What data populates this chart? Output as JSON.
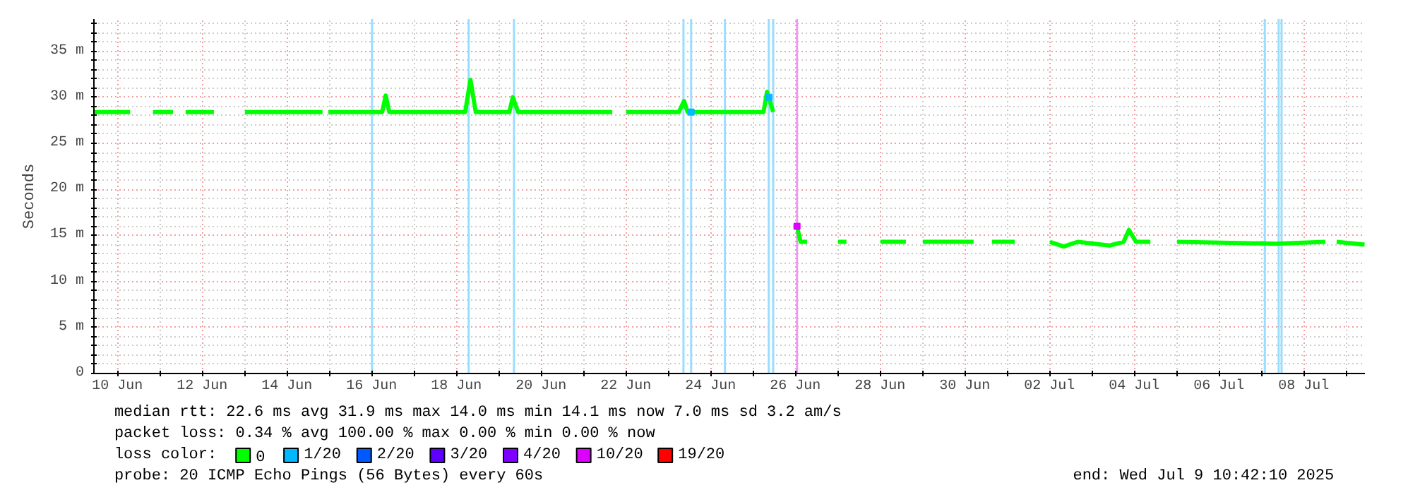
{
  "chart_data": {
    "type": "line",
    "ylabel": "Seconds",
    "xlim": [
      "2025-06-09T10:42",
      "2025-07-09T10:42"
    ],
    "xticks": [
      {
        "value": "2025-06-10",
        "label": "10 Jun"
      },
      {
        "value": "2025-06-11",
        "label": null
      },
      {
        "value": "2025-06-12",
        "label": "12 Jun"
      },
      {
        "value": "2025-06-13",
        "label": null
      },
      {
        "value": "2025-06-14",
        "label": "14 Jun"
      },
      {
        "value": "2025-06-15",
        "label": null
      },
      {
        "value": "2025-06-16",
        "label": "16 Jun"
      },
      {
        "value": "2025-06-17",
        "label": null
      },
      {
        "value": "2025-06-18",
        "label": "18 Jun"
      },
      {
        "value": "2025-06-19",
        "label": null
      },
      {
        "value": "2025-06-20",
        "label": "20 Jun"
      },
      {
        "value": "2025-06-21",
        "label": null
      },
      {
        "value": "2025-06-22",
        "label": "22 Jun"
      },
      {
        "value": "2025-06-23",
        "label": null
      },
      {
        "value": "2025-06-24",
        "label": "24 Jun"
      },
      {
        "value": "2025-06-25",
        "label": null
      },
      {
        "value": "2025-06-26",
        "label": "26 Jun"
      },
      {
        "value": "2025-06-27",
        "label": null
      },
      {
        "value": "2025-06-28",
        "label": "28 Jun"
      },
      {
        "value": "2025-06-29",
        "label": null
      },
      {
        "value": "2025-06-30",
        "label": "30 Jun"
      },
      {
        "value": "2025-07-01",
        "label": null
      },
      {
        "value": "2025-07-02",
        "label": "02 Jul"
      },
      {
        "value": "2025-07-03",
        "label": null
      },
      {
        "value": "2025-07-04",
        "label": "04 Jul"
      },
      {
        "value": "2025-07-05",
        "label": null
      },
      {
        "value": "2025-07-06",
        "label": "06 Jul"
      },
      {
        "value": "2025-07-07",
        "label": null
      },
      {
        "value": "2025-07-08",
        "label": "08 Jul"
      },
      {
        "value": "2025-07-09",
        "label": null
      }
    ],
    "ylim": [
      0,
      38.5
    ],
    "yticks": [
      {
        "value": 0,
        "label": "0"
      },
      {
        "value": 1,
        "label": null
      },
      {
        "value": 2,
        "label": null
      },
      {
        "value": 3,
        "label": null
      },
      {
        "value": 4,
        "label": null
      },
      {
        "value": 5,
        "label": "5 m"
      },
      {
        "value": 6,
        "label": null
      },
      {
        "value": 7,
        "label": null
      },
      {
        "value": 8,
        "label": null
      },
      {
        "value": 9,
        "label": null
      },
      {
        "value": 10,
        "label": "10 m"
      },
      {
        "value": 11,
        "label": null
      },
      {
        "value": 12,
        "label": null
      },
      {
        "value": 13,
        "label": null
      },
      {
        "value": 14,
        "label": null
      },
      {
        "value": 15,
        "label": "15 m"
      },
      {
        "value": 16,
        "label": null
      },
      {
        "value": 17,
        "label": null
      },
      {
        "value": 18,
        "label": null
      },
      {
        "value": 19,
        "label": null
      },
      {
        "value": 20,
        "label": "20 m"
      },
      {
        "value": 21,
        "label": null
      },
      {
        "value": 22,
        "label": null
      },
      {
        "value": 23,
        "label": null
      },
      {
        "value": 24,
        "label": null
      },
      {
        "value": 25,
        "label": "25 m"
      },
      {
        "value": 26,
        "label": null
      },
      {
        "value": 27,
        "label": null
      },
      {
        "value": 28,
        "label": null
      },
      {
        "value": 29,
        "label": null
      },
      {
        "value": 30,
        "label": "30 m"
      },
      {
        "value": 31,
        "label": null
      },
      {
        "value": 32,
        "label": null
      },
      {
        "value": 33,
        "label": null
      },
      {
        "value": 34,
        "label": null
      },
      {
        "value": 35,
        "label": "35 m"
      },
      {
        "value": 36,
        "label": null
      },
      {
        "value": 37,
        "label": null
      },
      {
        "value": 38,
        "label": null
      }
    ],
    "grid": true,
    "legend": "bottom",
    "legend_title": "loss color:",
    "marker": "none",
    "line_style": "solid",
    "series": [
      {
        "name": "0",
        "color": "#00ff00",
        "x": [
          "2025-06-09T10:45",
          "2025-06-10T07:12",
          "2025-06-10T07:30",
          "2025-06-10T20:10",
          "2025-06-11T07:30",
          "2025-06-11T08:00",
          "2025-06-11T14:40",
          "2025-06-12T06:40",
          "2025-06-12T07:00",
          "2025-06-13T00:15",
          "2025-06-14T20:10",
          "2025-06-14T21:00",
          "2025-06-14T23:30",
          "2025-06-16T06:00",
          "2025-06-16T08:00",
          "2025-06-16T10:00",
          "2025-06-18T05:00",
          "2025-06-18T08:00",
          "2025-06-18T11:00",
          "2025-06-19T06:00",
          "2025-06-19T08:00",
          "2025-06-19T11:00",
          "2025-06-21T16:20",
          "2025-06-21T18:00",
          "2025-06-22T00:15",
          "2025-06-23T06:00",
          "2025-06-23T09:00",
          "2025-06-23T11:00",
          "2025-06-25T06:00",
          "2025-06-25T08:00",
          "2025-06-25T11:30",
          "2025-06-25T12:00",
          "2025-06-26T01:00",
          "2025-06-26T03:00",
          "2025-06-26T06:40",
          "2025-06-26T08:00",
          "2025-06-27T00:15",
          "2025-06-27T05:00",
          "2025-06-27T06:00",
          "2025-06-28T00:15",
          "2025-06-28T14:40",
          "2025-06-28T16:00",
          "2025-06-29T00:15",
          "2025-06-30T05:00",
          "2025-06-30T06:00",
          "2025-06-30T15:25",
          "2025-07-01T04:20",
          "2025-07-01T06:00",
          "2025-07-02T00:15",
          "2025-07-02T08:00",
          "2025-07-02T16:00",
          "2025-07-03T10:00",
          "2025-07-03T18:00",
          "2025-07-03T21:00",
          "2025-07-04T01:00",
          "2025-07-04T09:10",
          "2025-07-04T10:00",
          "2025-07-05T00:15",
          "2025-07-07T08:00",
          "2025-07-08T12:15",
          "2025-07-08T14:00",
          "2025-07-08T18:40",
          "2025-07-09T10:30"
        ],
        "values": [
          28.4,
          28.4,
          null,
          28.4,
          28.4,
          null,
          28.4,
          28.4,
          null,
          28.4,
          28.4,
          null,
          28.4,
          28.4,
          30.2,
          28.4,
          28.4,
          31.9,
          28.4,
          28.4,
          30.0,
          28.4,
          28.4,
          null,
          28.4,
          28.4,
          29.6,
          28.4,
          28.4,
          30.6,
          28.4,
          null,
          16.0,
          14.3,
          14.3,
          null,
          14.3,
          14.3,
          null,
          14.3,
          14.3,
          null,
          14.3,
          14.3,
          null,
          14.3,
          14.3,
          null,
          14.3,
          13.8,
          14.3,
          13.9,
          14.3,
          15.6,
          14.3,
          14.3,
          null,
          14.3,
          14.1,
          14.3,
          null,
          14.3,
          14.0
        ]
      },
      {
        "name": "1/20",
        "type": "scatter",
        "marker": "square",
        "color": "#00b8ff",
        "x": [
          "2025-06-23T13:00",
          "2025-06-25T09:00"
        ],
        "values": [
          28.4,
          30.0
        ]
      },
      {
        "name": "2/20",
        "color": "#0059ff"
      },
      {
        "name": "3/20",
        "color": "#5e00ff"
      },
      {
        "name": "4/20",
        "color": "#7e00ff"
      },
      {
        "name": "10/20",
        "type": "scatter",
        "marker": "square",
        "color": "#dd00ff",
        "x": [
          "2025-06-26T01:00"
        ],
        "values": [
          16.0
        ]
      },
      {
        "name": "19/20",
        "color": "#ff0000"
      }
    ],
    "ref_lines": [
      {
        "axis": "x",
        "value": "2025-06-16T00:15",
        "color": "#99ddff"
      },
      {
        "axis": "x",
        "value": "2025-06-18T07:00",
        "color": "#99ddff"
      },
      {
        "axis": "x",
        "value": "2025-06-19T08:40",
        "color": "#99ddff"
      },
      {
        "axis": "x",
        "value": "2025-06-23T08:40",
        "color": "#99ddff"
      },
      {
        "axis": "x",
        "value": "2025-06-23T13:00",
        "color": "#99ddff"
      },
      {
        "axis": "x",
        "value": "2025-06-24T08:10",
        "color": "#99ddff"
      },
      {
        "axis": "x",
        "value": "2025-06-25T09:00",
        "color": "#99ddff"
      },
      {
        "axis": "x",
        "value": "2025-06-25T11:30",
        "color": "#99ddff"
      },
      {
        "axis": "x",
        "value": "2025-06-26T01:00",
        "color": "#ee99ee"
      },
      {
        "axis": "x",
        "value": "2025-07-07T02:00",
        "color": "#99ddff"
      },
      {
        "axis": "x",
        "value": "2025-07-07T09:50",
        "color": "#99ddff"
      },
      {
        "axis": "x",
        "value": "2025-07-07T11:30",
        "color": "#99ddff"
      }
    ],
    "annotations": [
      "median rtt:  22.6 ms avg  31.9 ms max  14.0 ms min  14.1 ms now  7.0 ms sd  3.2   am/s",
      "packet loss: 0.34 % avg  100.00 % max  0.00 % min  0.00 % now",
      "probe:       20 ICMP Echo Pings (56 Bytes) every 60s",
      "end: Wed Jul  9 10:42:10 2025"
    ]
  }
}
